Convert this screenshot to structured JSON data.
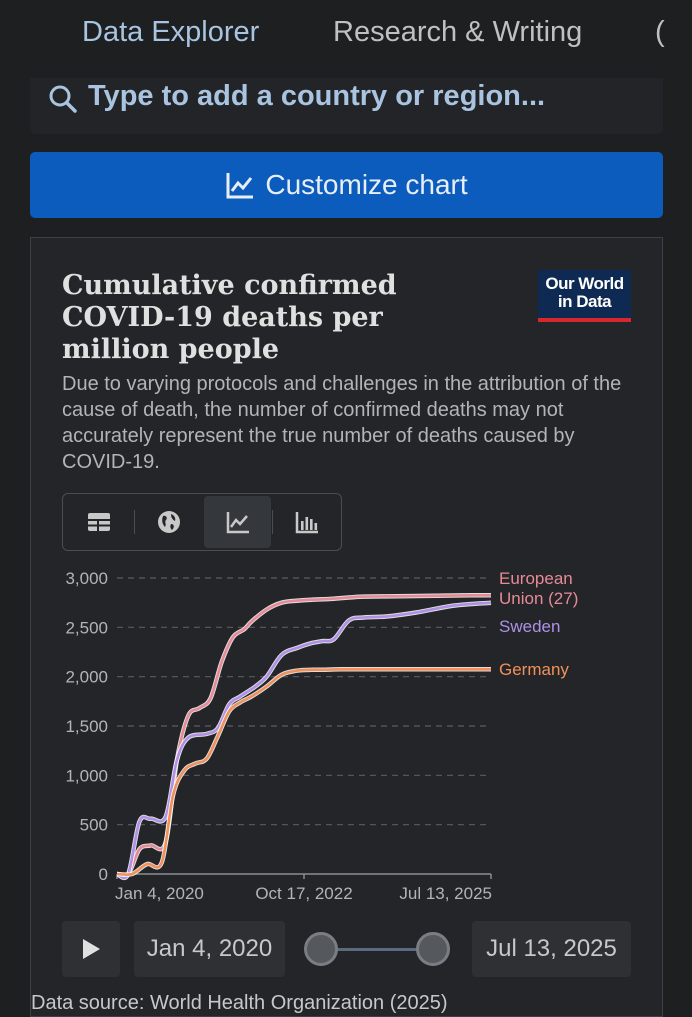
{
  "nav": {
    "tabs": [
      "Data Explorer",
      "Research & Writing",
      "("
    ],
    "active_index": 0
  },
  "search": {
    "placeholder": "Type to add a country or region..."
  },
  "customize": {
    "label": "Customize chart"
  },
  "card": {
    "title": "Cumulative confirmed COVID-19 deaths per million people",
    "subtitle": "Due to varying protocols and challenges in the attribution of the cause of death, the number of confirmed deaths may not accurately represent the true number of deaths caused by COVID-19.",
    "logo_line1": "Our World",
    "logo_line2": "in Data",
    "view_tabs": [
      "table-icon",
      "globe-icon",
      "line-chart-icon",
      "bar-chart-icon"
    ],
    "active_view": 2
  },
  "controls": {
    "start_date": "Jan 4, 2020",
    "end_date": "Jul 13, 2025"
  },
  "footer_text": "Data source: World Health Organization (2025)",
  "colors": {
    "eu": "#e88a96",
    "sweden": "#b090e6",
    "germany": "#f2905a",
    "accent": "#0b5cbc"
  },
  "chart_data": {
    "type": "line",
    "title": "Cumulative confirmed COVID-19 deaths per million people",
    "ylim": [
      0,
      3000
    ],
    "yticks": [
      0,
      500,
      1000,
      1500,
      2000,
      2500,
      3000
    ],
    "ytick_labels": [
      "0",
      "500",
      "1,000",
      "1,500",
      "2,000",
      "2,500",
      "3,000"
    ],
    "x_tick_labels": [
      {
        "label": "Jan 4, 2020",
        "t": 0
      },
      {
        "label": "Oct 17, 2022",
        "t": 0.5
      },
      {
        "label": "Jul 13, 2025",
        "t": 1
      }
    ],
    "x_range_note": "t is fraction of time from Jan 4, 2020 to Jul 13, 2025",
    "series": [
      {
        "name": "European Union (27)",
        "label_lines": [
          "European",
          "Union (27)"
        ],
        "color_key": "eu",
        "t": [
          0,
          0.03,
          0.06,
          0.09,
          0.13,
          0.16,
          0.19,
          0.22,
          0.25,
          0.28,
          0.31,
          0.34,
          0.36,
          0.4,
          0.44,
          0.48,
          0.52,
          0.58,
          0.65,
          0.75,
          0.85,
          0.95,
          1
        ],
        "values": [
          0,
          0,
          250,
          290,
          320,
          1150,
          1600,
          1680,
          1780,
          2150,
          2400,
          2480,
          2560,
          2680,
          2750,
          2770,
          2780,
          2790,
          2810,
          2815,
          2820,
          2825,
          2825
        ]
      },
      {
        "name": "Sweden",
        "label_lines": [
          "Sweden"
        ],
        "color_key": "sweden",
        "t": [
          0,
          0.03,
          0.06,
          0.09,
          0.13,
          0.16,
          0.19,
          0.24,
          0.27,
          0.3,
          0.33,
          0.37,
          0.4,
          0.44,
          0.48,
          0.52,
          0.55,
          0.58,
          0.62,
          0.66,
          0.72,
          0.8,
          0.9,
          1
        ],
        "values": [
          0,
          0,
          530,
          560,
          580,
          1150,
          1380,
          1420,
          1480,
          1720,
          1800,
          1900,
          2000,
          2220,
          2290,
          2340,
          2360,
          2380,
          2570,
          2600,
          2610,
          2650,
          2720,
          2750
        ]
      },
      {
        "name": "Germany",
        "label_lines": [
          "Germany"
        ],
        "color_key": "germany",
        "t": [
          0,
          0.04,
          0.08,
          0.12,
          0.15,
          0.18,
          0.21,
          0.24,
          0.27,
          0.3,
          0.33,
          0.36,
          0.4,
          0.44,
          0.48,
          0.52,
          0.55,
          0.6,
          0.7,
          0.8,
          0.9,
          1
        ],
        "values": [
          0,
          0,
          100,
          120,
          800,
          1050,
          1120,
          1170,
          1400,
          1650,
          1740,
          1800,
          1900,
          2020,
          2060,
          2070,
          2070,
          2075,
          2075,
          2075,
          2075,
          2075
        ]
      }
    ]
  }
}
